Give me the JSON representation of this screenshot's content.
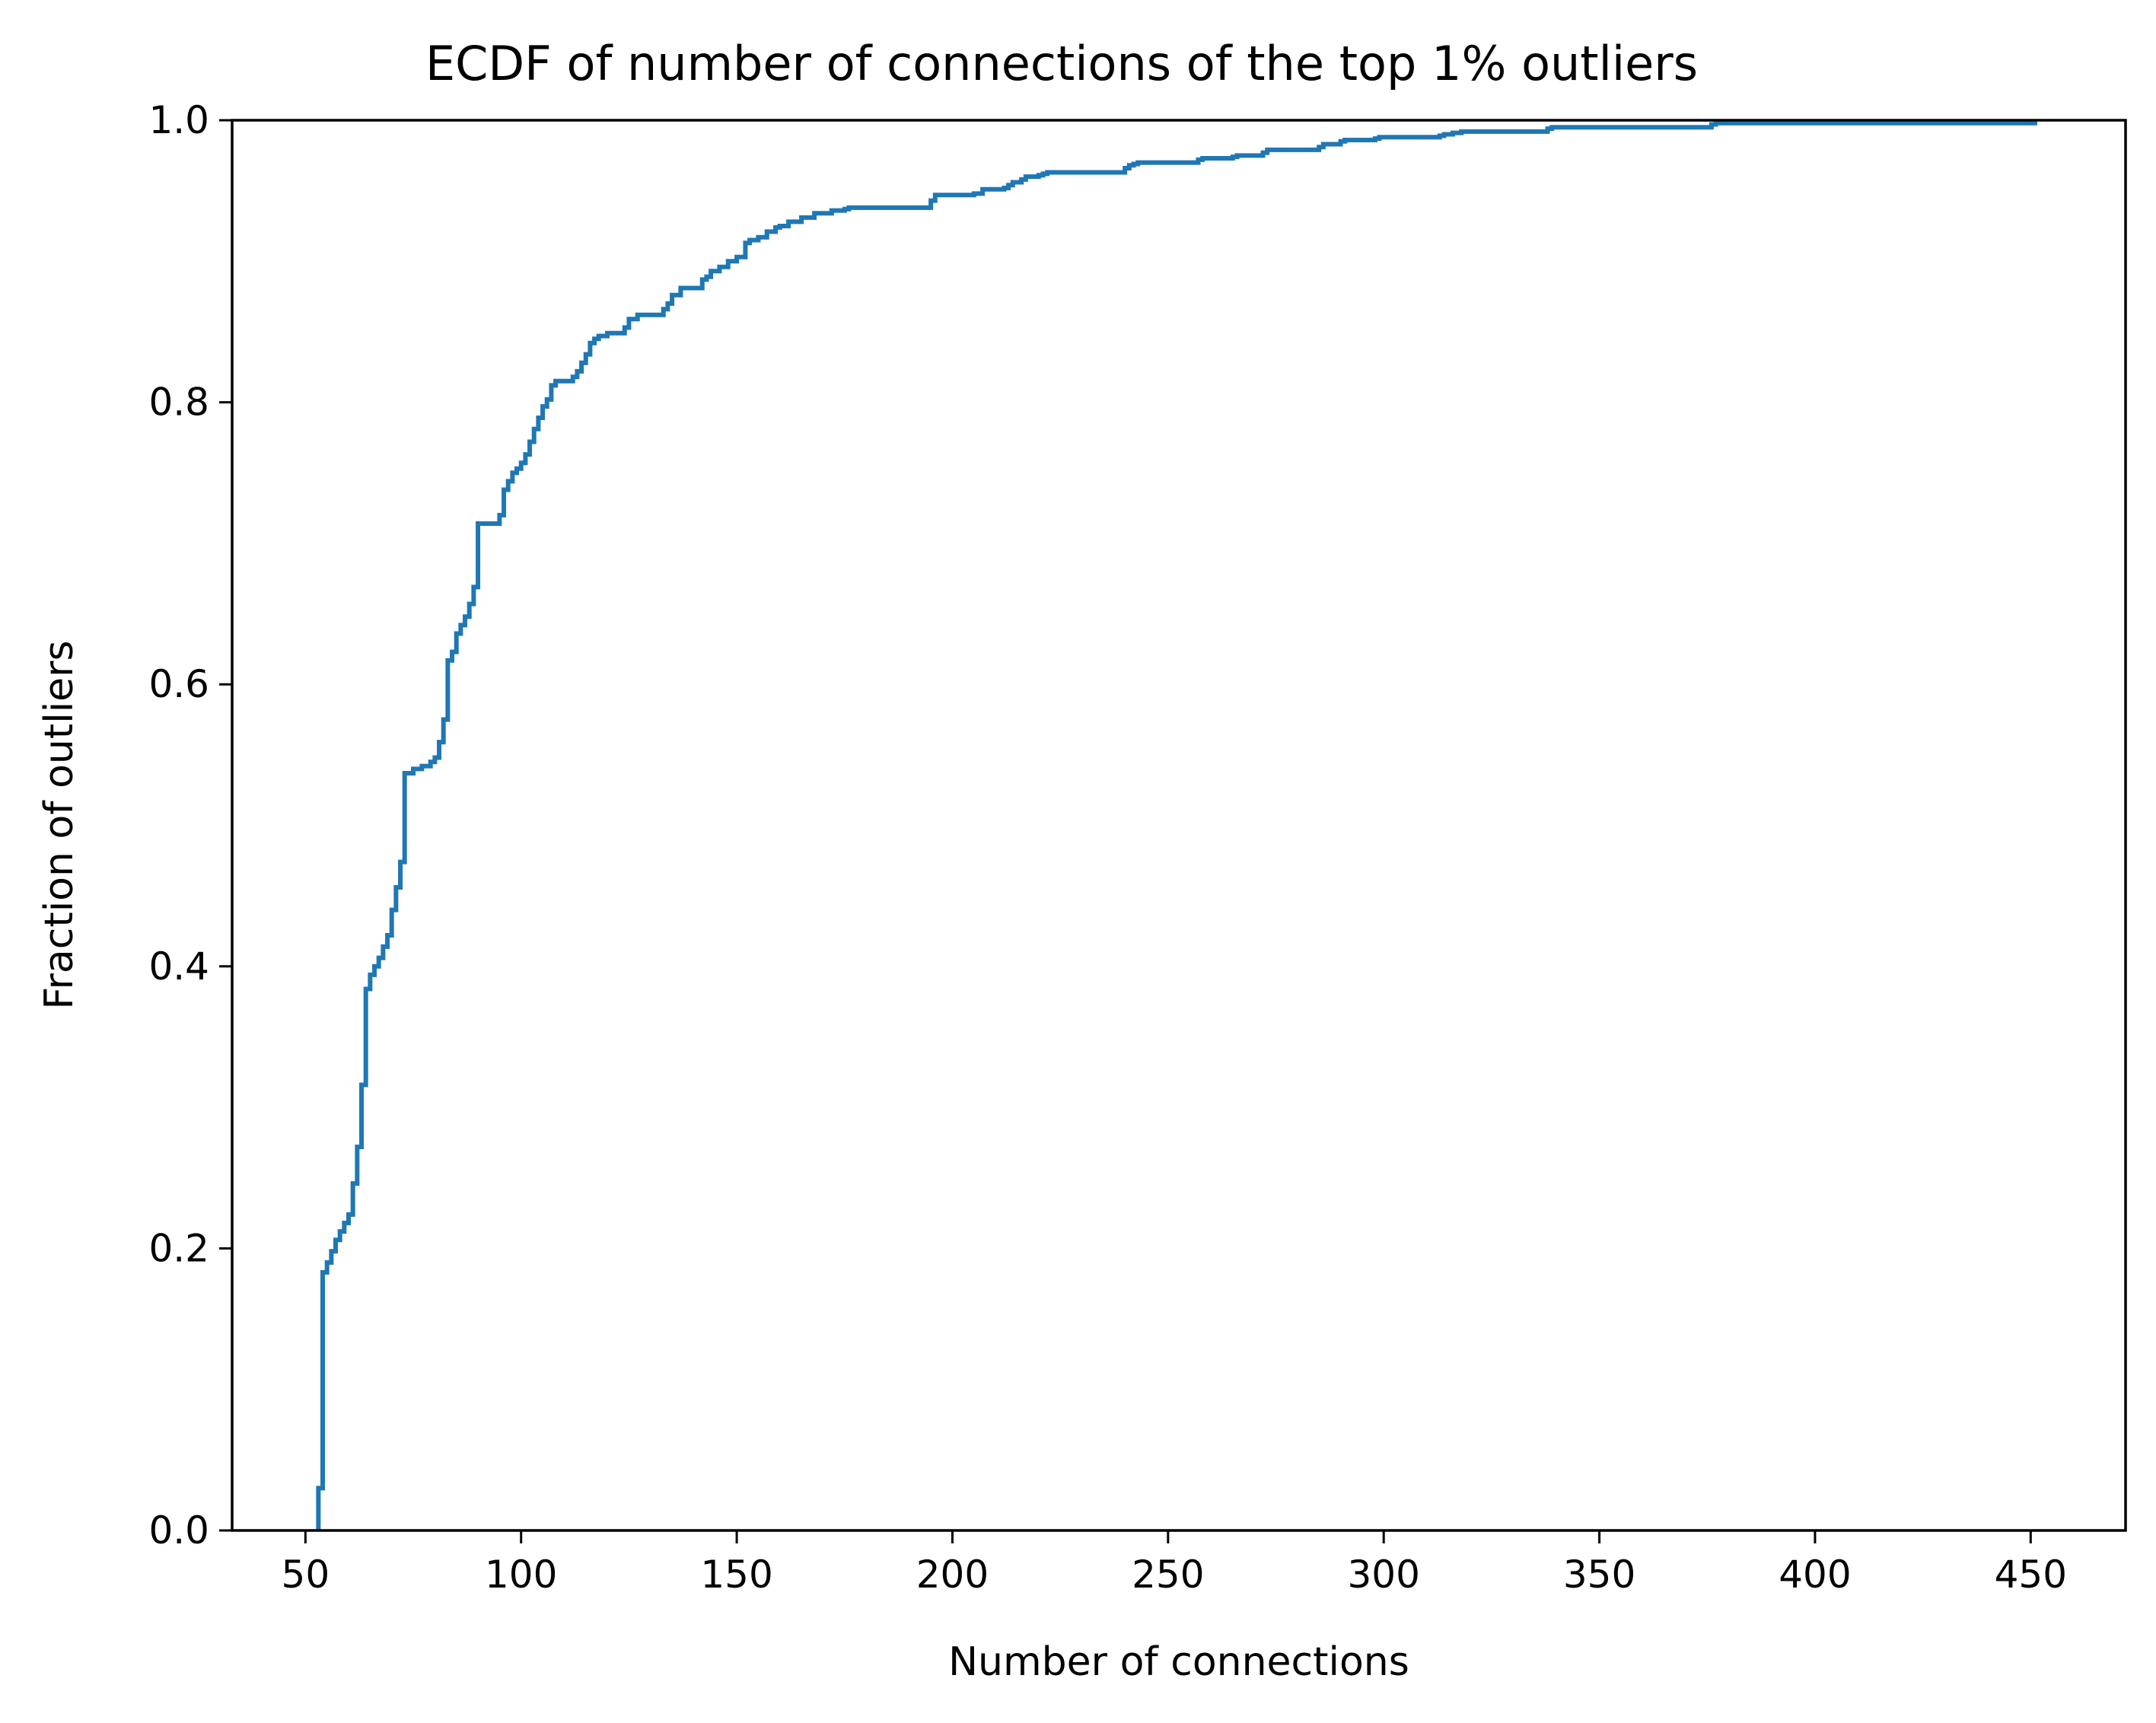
{
  "chart_data": {
    "type": "line",
    "drawstyle": "steps-post",
    "title": "ECDF of number of connections of the top 1% outliers",
    "xlabel": "Number of connections",
    "ylabel": "Fraction of outliers",
    "xlim": [
      33,
      472
    ],
    "ylim": [
      0.0,
      1.0
    ],
    "xticks": [
      50,
      100,
      150,
      200,
      250,
      300,
      350,
      400,
      450
    ],
    "xtick_labels": [
      "50",
      "100",
      "150",
      "200",
      "250",
      "300",
      "350",
      "400",
      "450"
    ],
    "yticks": [
      0.0,
      0.2,
      0.4,
      0.6,
      0.8,
      1.0
    ],
    "ytick_labels": [
      "0.0",
      "0.2",
      "0.4",
      "0.6",
      "0.8",
      "1.0"
    ],
    "grid": false,
    "series": [
      {
        "color": "#1f77b4",
        "x": [
          53,
          54,
          55,
          56,
          57,
          58,
          59,
          60,
          61,
          62,
          63,
          64,
          65,
          66,
          67,
          68,
          69,
          70,
          71,
          72,
          73,
          75,
          77,
          79,
          80,
          81,
          82,
          83,
          84,
          85,
          86,
          87,
          88,
          89,
          90,
          95,
          96,
          97,
          98,
          99,
          100,
          101,
          102,
          103,
          104,
          105,
          106,
          107,
          108,
          112,
          113,
          114,
          115,
          116,
          117,
          118,
          120,
          124,
          125,
          127,
          133,
          134,
          135,
          137,
          142,
          143,
          144,
          146,
          148,
          150,
          152,
          153,
          155,
          157,
          159,
          160,
          162,
          165,
          168,
          172,
          175,
          176,
          195,
          196,
          205,
          207,
          212,
          213,
          214,
          216,
          217,
          220,
          221,
          222,
          240,
          241,
          242,
          243,
          257,
          258,
          265,
          266,
          272,
          273,
          285,
          286,
          290,
          291,
          298,
          299,
          313,
          314,
          316,
          318,
          338,
          339,
          376,
          377,
          451
        ],
        "y": [
          0.03,
          0.183,
          0.19,
          0.198,
          0.206,
          0.212,
          0.218,
          0.224,
          0.246,
          0.272,
          0.316,
          0.384,
          0.394,
          0.4,
          0.406,
          0.414,
          0.422,
          0.44,
          0.456,
          0.474,
          0.537,
          0.54,
          0.542,
          0.545,
          0.548,
          0.559,
          0.575,
          0.617,
          0.623,
          0.636,
          0.642,
          0.648,
          0.657,
          0.669,
          0.714,
          0.72,
          0.738,
          0.744,
          0.75,
          0.753,
          0.757,
          0.763,
          0.772,
          0.781,
          0.789,
          0.797,
          0.802,
          0.812,
          0.815,
          0.818,
          0.822,
          0.828,
          0.834,
          0.842,
          0.845,
          0.847,
          0.849,
          0.853,
          0.859,
          0.862,
          0.866,
          0.87,
          0.876,
          0.881,
          0.887,
          0.889,
          0.893,
          0.896,
          0.9,
          0.903,
          0.913,
          0.915,
          0.917,
          0.921,
          0.924,
          0.925,
          0.928,
          0.931,
          0.934,
          0.936,
          0.937,
          0.938,
          0.943,
          0.947,
          0.948,
          0.951,
          0.952,
          0.954,
          0.956,
          0.958,
          0.96,
          0.961,
          0.962,
          0.963,
          0.966,
          0.968,
          0.969,
          0.97,
          0.972,
          0.973,
          0.974,
          0.975,
          0.977,
          0.979,
          0.981,
          0.983,
          0.985,
          0.986,
          0.987,
          0.988,
          0.989,
          0.99,
          0.991,
          0.992,
          0.994,
          0.995,
          0.997,
          0.998,
          1.0
        ]
      }
    ]
  }
}
